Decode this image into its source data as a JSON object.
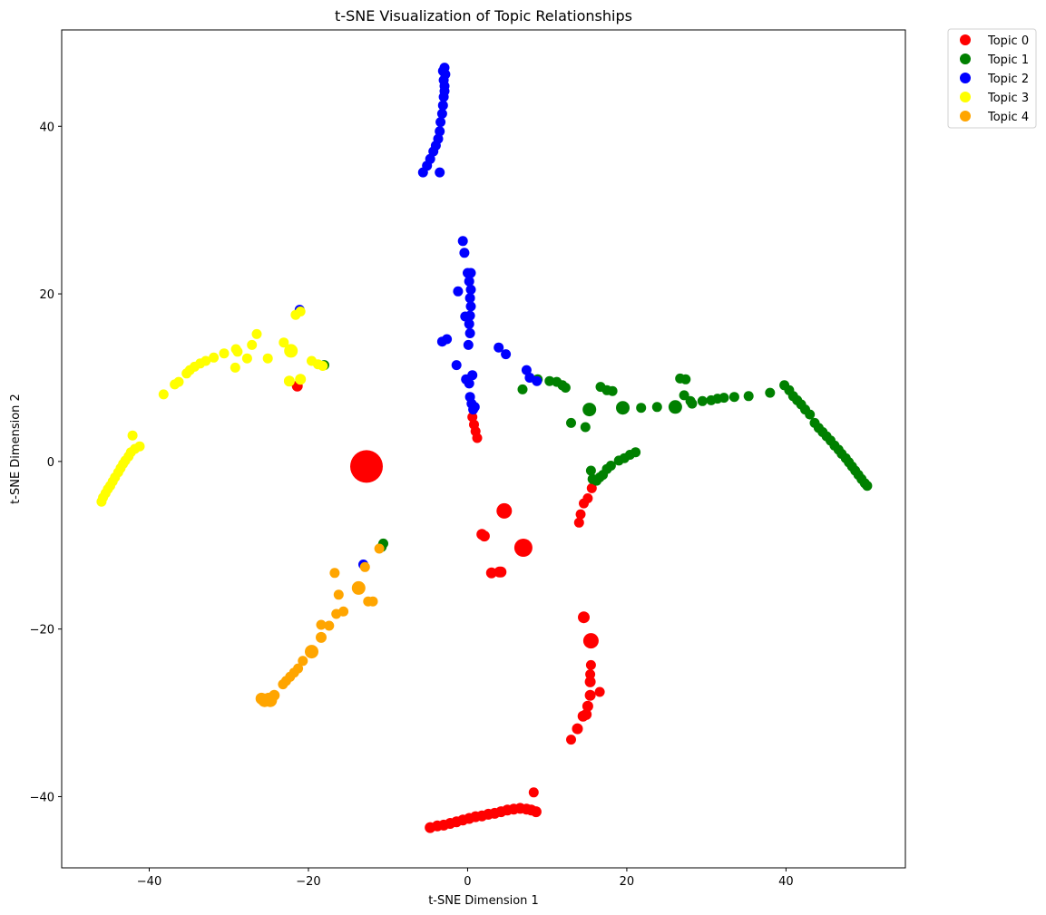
{
  "chart_data": {
    "type": "scatter",
    "title": "t-SNE Visualization of Topic Relationships",
    "xlabel": "t-SNE Dimension 1",
    "ylabel": "t-SNE Dimension 2",
    "xlim": [
      -51,
      55
    ],
    "ylim": [
      -48.5,
      51.5
    ],
    "xticks": [
      -40,
      -20,
      0,
      20,
      40
    ],
    "yticks": [
      -40,
      -20,
      0,
      20,
      40
    ],
    "grid": false,
    "legend_position": "outside-top-right",
    "series": [
      {
        "name": "Topic 0",
        "color": "#ff0000",
        "points": [
          [
            -12.7,
            -0.6,
            3.6
          ],
          [
            4.6,
            -5.9,
            1.7
          ],
          [
            7.0,
            -10.3,
            2.0
          ],
          [
            1.8,
            -8.7,
            1.2
          ],
          [
            2.1,
            -8.9,
            1.2
          ],
          [
            3.0,
            -13.3,
            1.2
          ],
          [
            4.2,
            -13.2,
            1.2
          ],
          [
            4.0,
            -13.2,
            1.2
          ],
          [
            14.0,
            -7.3,
            1.1
          ],
          [
            14.2,
            -6.3,
            1.1
          ],
          [
            14.6,
            -5.0,
            1.1
          ],
          [
            15.1,
            -4.4,
            1.1
          ],
          [
            15.6,
            -3.2,
            1.1
          ],
          [
            0.6,
            5.3,
            1.1
          ],
          [
            0.8,
            4.4,
            1.1
          ],
          [
            1.0,
            3.6,
            1.1
          ],
          [
            1.2,
            2.8,
            1.1
          ],
          [
            -21.4,
            9.0,
            1.2
          ],
          [
            14.6,
            -18.6,
            1.3
          ],
          [
            15.5,
            -21.4,
            1.7
          ],
          [
            15.5,
            -24.3,
            1.1
          ],
          [
            15.4,
            -25.4,
            1.1
          ],
          [
            15.4,
            -26.3,
            1.2
          ],
          [
            15.4,
            -27.9,
            1.2
          ],
          [
            16.6,
            -27.5,
            1.1
          ],
          [
            15.1,
            -29.2,
            1.2
          ],
          [
            14.9,
            -30.2,
            1.2
          ],
          [
            14.5,
            -30.4,
            1.2
          ],
          [
            13.8,
            -31.9,
            1.2
          ],
          [
            13.0,
            -33.2,
            1.1
          ],
          [
            8.3,
            -39.5,
            1.1
          ],
          [
            -4.7,
            -43.7,
            1.2
          ],
          [
            -3.8,
            -43.5,
            1.2
          ],
          [
            -3.0,
            -43.4,
            1.2
          ],
          [
            -2.2,
            -43.2,
            1.2
          ],
          [
            -1.4,
            -43.0,
            1.2
          ],
          [
            -0.6,
            -42.8,
            1.2
          ],
          [
            0.2,
            -42.6,
            1.2
          ],
          [
            1.0,
            -42.4,
            1.2
          ],
          [
            1.8,
            -42.3,
            1.2
          ],
          [
            2.6,
            -42.1,
            1.2
          ],
          [
            3.4,
            -42.0,
            1.2
          ],
          [
            4.2,
            -41.8,
            1.2
          ],
          [
            5.0,
            -41.6,
            1.2
          ],
          [
            5.8,
            -41.5,
            1.2
          ],
          [
            6.6,
            -41.4,
            1.2
          ],
          [
            7.4,
            -41.5,
            1.2
          ],
          [
            8.0,
            -41.6,
            1.2
          ],
          [
            8.6,
            -41.8,
            1.2
          ]
        ]
      },
      {
        "name": "Topic 1",
        "color": "#008000",
        "points": [
          [
            -18.0,
            11.5,
            1.1
          ],
          [
            -10.6,
            -9.8,
            1.1
          ],
          [
            -10.8,
            -10.2,
            1.1
          ],
          [
            6.9,
            8.6,
            1.1
          ],
          [
            8.8,
            9.8,
            1.1
          ],
          [
            10.3,
            9.6,
            1.1
          ],
          [
            11.2,
            9.5,
            1.1
          ],
          [
            11.9,
            9.1,
            1.1
          ],
          [
            12.3,
            8.8,
            1.1
          ],
          [
            13.0,
            4.6,
            1.1
          ],
          [
            14.8,
            4.1,
            1.1
          ],
          [
            15.3,
            6.2,
            1.5
          ],
          [
            16.7,
            8.9,
            1.1
          ],
          [
            17.5,
            8.5,
            1.1
          ],
          [
            18.2,
            8.4,
            1.1
          ],
          [
            19.5,
            6.4,
            1.5
          ],
          [
            21.8,
            6.4,
            1.1
          ],
          [
            23.8,
            6.5,
            1.1
          ],
          [
            26.1,
            6.5,
            1.5
          ],
          [
            26.7,
            9.9,
            1.1
          ],
          [
            27.4,
            9.8,
            1.1
          ],
          [
            27.2,
            7.9,
            1.1
          ],
          [
            28.2,
            6.9,
            1.1
          ],
          [
            28.0,
            7.2,
            1.1
          ],
          [
            29.5,
            7.2,
            1.1
          ],
          [
            30.6,
            7.3,
            1.1
          ],
          [
            31.4,
            7.5,
            1.1
          ],
          [
            32.2,
            7.6,
            1.1
          ],
          [
            33.5,
            7.7,
            1.1
          ],
          [
            35.3,
            7.8,
            1.1
          ],
          [
            38.0,
            8.2,
            1.1
          ],
          [
            15.5,
            -1.1,
            1.1
          ],
          [
            15.7,
            -2.1,
            1.1
          ],
          [
            16.2,
            -2.3,
            1.1
          ],
          [
            16.6,
            -1.9,
            1.1
          ],
          [
            17.0,
            -1.6,
            1.1
          ],
          [
            17.5,
            -0.9,
            1.1
          ],
          [
            18.0,
            -0.5,
            1.1
          ],
          [
            19.0,
            0.1,
            1.1
          ],
          [
            19.7,
            0.4,
            1.1
          ],
          [
            20.4,
            0.8,
            1.1
          ],
          [
            21.1,
            1.1,
            1.1
          ],
          [
            39.8,
            9.1,
            1.1
          ],
          [
            40.4,
            8.5,
            1.1
          ],
          [
            40.9,
            7.8,
            1.1
          ],
          [
            41.4,
            7.3,
            1.1
          ],
          [
            41.9,
            6.8,
            1.1
          ],
          [
            42.4,
            6.2,
            1.1
          ],
          [
            43.0,
            5.6,
            1.1
          ],
          [
            43.6,
            4.6,
            1.1
          ],
          [
            44.1,
            4.0,
            1.1
          ],
          [
            44.6,
            3.5,
            1.1
          ],
          [
            45.1,
            3.0,
            1.1
          ],
          [
            45.6,
            2.5,
            1.1
          ],
          [
            46.1,
            1.9,
            1.1
          ],
          [
            46.6,
            1.4,
            1.1
          ],
          [
            47.0,
            0.9,
            1.1
          ],
          [
            47.5,
            0.4,
            1.1
          ],
          [
            47.9,
            -0.1,
            1.1
          ],
          [
            48.3,
            -0.6,
            1.1
          ],
          [
            48.7,
            -1.1,
            1.1
          ],
          [
            49.1,
            -1.6,
            1.1
          ],
          [
            49.5,
            -2.1,
            1.1
          ],
          [
            49.9,
            -2.6,
            1.1
          ],
          [
            50.2,
            -2.9,
            1.1
          ]
        ]
      },
      {
        "name": "Topic 2",
        "color": "#0000ff",
        "points": [
          [
            -5.6,
            34.5,
            1.1
          ],
          [
            -3.5,
            34.5,
            1.1
          ],
          [
            -5.1,
            35.3,
            1.1
          ],
          [
            -4.7,
            36.1,
            1.1
          ],
          [
            -4.3,
            37.0,
            1.1
          ],
          [
            -4.0,
            37.7,
            1.1
          ],
          [
            -3.7,
            38.5,
            1.1
          ],
          [
            -3.5,
            39.4,
            1.1
          ],
          [
            -3.4,
            40.5,
            1.1
          ],
          [
            -3.2,
            41.5,
            1.1
          ],
          [
            -3.1,
            42.5,
            1.1
          ],
          [
            -3.0,
            43.5,
            1.1
          ],
          [
            -2.9,
            44.2,
            1.1
          ],
          [
            -2.9,
            44.8,
            1.1
          ],
          [
            -3.0,
            45.5,
            1.1
          ],
          [
            -2.8,
            46.2,
            1.1
          ],
          [
            -3.1,
            46.6,
            1.1
          ],
          [
            -2.9,
            47.0,
            1.1
          ],
          [
            -0.6,
            26.3,
            1.1
          ],
          [
            -0.4,
            24.9,
            1.1
          ],
          [
            0.0,
            22.5,
            1.1
          ],
          [
            0.4,
            22.5,
            1.1
          ],
          [
            0.2,
            21.5,
            1.1
          ],
          [
            0.4,
            20.5,
            1.1
          ],
          [
            0.3,
            19.5,
            1.1
          ],
          [
            0.4,
            18.5,
            1.1
          ],
          [
            0.3,
            17.4,
            1.1
          ],
          [
            -0.3,
            17.3,
            1.1
          ],
          [
            0.2,
            16.4,
            1.1
          ],
          [
            0.3,
            15.3,
            1.1
          ],
          [
            0.1,
            13.9,
            1.1
          ],
          [
            -1.2,
            20.3,
            1.1
          ],
          [
            -3.2,
            14.3,
            1.1
          ],
          [
            -2.6,
            14.6,
            1.1
          ],
          [
            -1.4,
            11.5,
            1.1
          ],
          [
            -0.2,
            9.8,
            1.1
          ],
          [
            0.2,
            9.3,
            1.1
          ],
          [
            0.6,
            10.3,
            1.1
          ],
          [
            0.3,
            7.7,
            1.1
          ],
          [
            0.5,
            6.9,
            1.1
          ],
          [
            0.7,
            6.2,
            1.1
          ],
          [
            0.9,
            6.5,
            1.1
          ],
          [
            3.9,
            13.6,
            1.1
          ],
          [
            4.8,
            12.8,
            1.1
          ],
          [
            7.4,
            10.9,
            1.1
          ],
          [
            7.8,
            10.0,
            1.1
          ],
          [
            8.7,
            9.6,
            1.1
          ],
          [
            -21.1,
            18.1,
            1.1
          ],
          [
            -13.1,
            -12.3,
            1.1
          ]
        ]
      },
      {
        "name": "Topic 3",
        "color": "#ffff00",
        "points": [
          [
            -21.6,
            17.5,
            1.1
          ],
          [
            -21.0,
            17.9,
            1.1
          ],
          [
            -22.2,
            13.2,
            1.5
          ],
          [
            -22.4,
            9.6,
            1.2
          ],
          [
            -21.0,
            9.8,
            1.2
          ],
          [
            -19.6,
            12.0,
            1.1
          ],
          [
            -18.8,
            11.6,
            1.1
          ],
          [
            -18.2,
            11.4,
            1.1
          ],
          [
            -23.1,
            14.2,
            1.1
          ],
          [
            -25.1,
            12.3,
            1.1
          ],
          [
            -26.5,
            15.2,
            1.1
          ],
          [
            -27.1,
            13.9,
            1.1
          ],
          [
            -27.7,
            12.3,
            1.1
          ],
          [
            -29.2,
            11.2,
            1.1
          ],
          [
            -28.9,
            13.1,
            1.1
          ],
          [
            -29.1,
            13.4,
            1.1
          ],
          [
            -30.6,
            12.9,
            1.1
          ],
          [
            -31.9,
            12.4,
            1.1
          ],
          [
            -32.9,
            12.0,
            1.1
          ],
          [
            -33.6,
            11.7,
            1.1
          ],
          [
            -34.3,
            11.3,
            1.1
          ],
          [
            -34.9,
            10.9,
            1.1
          ],
          [
            -35.3,
            10.5,
            1.1
          ],
          [
            -36.3,
            9.5,
            1.1
          ],
          [
            -36.8,
            9.2,
            1.1
          ],
          [
            -38.2,
            8.0,
            1.1
          ],
          [
            -42.1,
            3.1,
            1.1
          ],
          [
            -41.2,
            1.8,
            1.1
          ],
          [
            -41.8,
            1.5,
            1.1
          ],
          [
            -42.3,
            1.1,
            1.1
          ],
          [
            -42.6,
            0.6,
            1.1
          ],
          [
            -43.0,
            0.1,
            1.1
          ],
          [
            -43.3,
            -0.3,
            1.1
          ],
          [
            -43.6,
            -0.8,
            1.1
          ],
          [
            -43.9,
            -1.3,
            1.1
          ],
          [
            -44.3,
            -1.9,
            1.1
          ],
          [
            -44.6,
            -2.4,
            1.1
          ],
          [
            -44.9,
            -2.9,
            1.1
          ],
          [
            -45.2,
            -3.3,
            1.1
          ],
          [
            -45.5,
            -3.8,
            1.1
          ],
          [
            -45.8,
            -4.3,
            1.1
          ],
          [
            -46.0,
            -4.8,
            1.1
          ]
        ]
      },
      {
        "name": "Topic 4",
        "color": "#ffa500",
        "points": [
          [
            -11.1,
            -10.4,
            1.1
          ],
          [
            -12.9,
            -12.6,
            1.1
          ],
          [
            -16.7,
            -13.3,
            1.1
          ],
          [
            -13.7,
            -15.1,
            1.5
          ],
          [
            -16.2,
            -15.9,
            1.1
          ],
          [
            -12.5,
            -16.7,
            1.1
          ],
          [
            -11.9,
            -16.7,
            1.1
          ],
          [
            -15.6,
            -17.9,
            1.1
          ],
          [
            -16.5,
            -18.2,
            1.1
          ],
          [
            -18.4,
            -19.5,
            1.1
          ],
          [
            -17.4,
            -19.6,
            1.1
          ],
          [
            -18.4,
            -21.0,
            1.2
          ],
          [
            -19.6,
            -22.7,
            1.5
          ],
          [
            -20.7,
            -23.8,
            1.1
          ],
          [
            -21.3,
            -24.7,
            1.1
          ],
          [
            -21.8,
            -25.2,
            1.1
          ],
          [
            -22.3,
            -25.7,
            1.1
          ],
          [
            -22.8,
            -26.2,
            1.1
          ],
          [
            -23.2,
            -26.6,
            1.1
          ],
          [
            -24.3,
            -27.9,
            1.2
          ],
          [
            -25.0,
            -28.3,
            1.3
          ],
          [
            -25.5,
            -28.5,
            1.5
          ],
          [
            -24.8,
            -28.5,
            1.5
          ],
          [
            -25.9,
            -28.3,
            1.3
          ]
        ]
      }
    ]
  }
}
